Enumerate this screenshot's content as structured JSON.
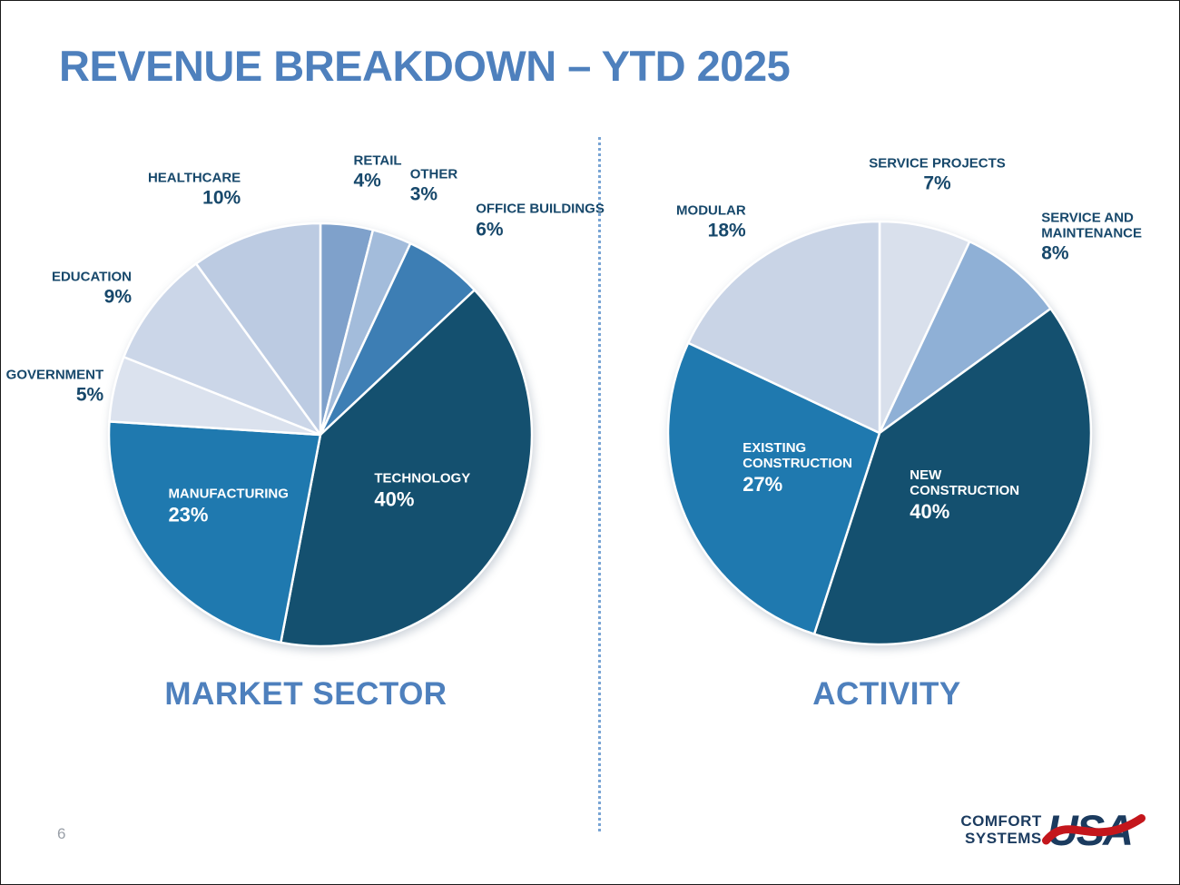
{
  "slide": {
    "title": "REVENUE BREAKDOWN – YTD 2025",
    "page_number": "6"
  },
  "logo": {
    "line1": "COMFORT",
    "line2": "SYSTEMS",
    "usa": "USA",
    "swoosh_color": "#C4161C",
    "text_color": "#1B3B5F"
  },
  "colors": {
    "title_blue": "#4E80BD",
    "label_navy": "#17486B",
    "divider_blue": "#78A4D4",
    "dark_navy": "#14506F",
    "medium_blue": "#1F79AF"
  },
  "chart_data": [
    {
      "type": "pie",
      "title": "MARKET SECTOR",
      "start_angle": 0,
      "legend": "none",
      "slices": [
        {
          "label": "RETAIL",
          "value": 4,
          "color": "#7FA1CB",
          "label_pos": "outside",
          "ld": 1.25
        },
        {
          "label": "OTHER",
          "value": 3,
          "color": "#A3BCDB",
          "label_pos": "outside",
          "ld": 1.25
        },
        {
          "label": "OFFICE BUILDINGS",
          "value": 6,
          "color": "#3D7EB4",
          "label_pos": "outside",
          "ld": 1.25
        },
        {
          "label": "TECHNOLOGY",
          "value": 40,
          "color": "#14506F",
          "label_pos": "inside",
          "ld": 0.55
        },
        {
          "label": "MANUFACTURING",
          "value": 23,
          "color": "#1F79AF",
          "label_pos": "inside",
          "ld": 0.55
        },
        {
          "label": "GOVERNMENT",
          "value": 5,
          "color": "#DBE2EE",
          "label_pos": "outside",
          "ld": 1.05
        },
        {
          "label": "EDUCATION",
          "value": 9,
          "color": "#CBD6E8",
          "label_pos": "outside",
          "ld": 1.13
        },
        {
          "label": "HEALTHCARE",
          "value": 10,
          "color": "#BCCBE2",
          "label_pos": "outside",
          "ld": 1.22
        }
      ]
    },
    {
      "type": "pie",
      "title": "ACTIVITY",
      "start_angle": 0,
      "legend": "none",
      "slices": [
        {
          "label": "SERVICE PROJECTS",
          "value": 7,
          "color": "#D9E0EC",
          "label_pos": "outside",
          "ld": 1.25,
          "align": "center"
        },
        {
          "label": "SERVICE AND MAINTENANCE",
          "value": 8,
          "color": "#8FB0D6",
          "label_pos": "outside",
          "ld": 1.2,
          "wrap": true
        },
        {
          "label": "NEW CONSTRUCTION",
          "value": 40,
          "color": "#14506F",
          "label_pos": "inside",
          "ld": 0.5,
          "wrap": true
        },
        {
          "label": "EXISTING CONSTRUCTION",
          "value": 27,
          "color": "#1F79AF",
          "label_pos": "inside",
          "ld": 0.42,
          "wrap": true
        },
        {
          "label": "MODULAR",
          "value": 18,
          "color": "#C9D4E6",
          "label_pos": "outside",
          "ld": 1.18
        }
      ]
    }
  ]
}
